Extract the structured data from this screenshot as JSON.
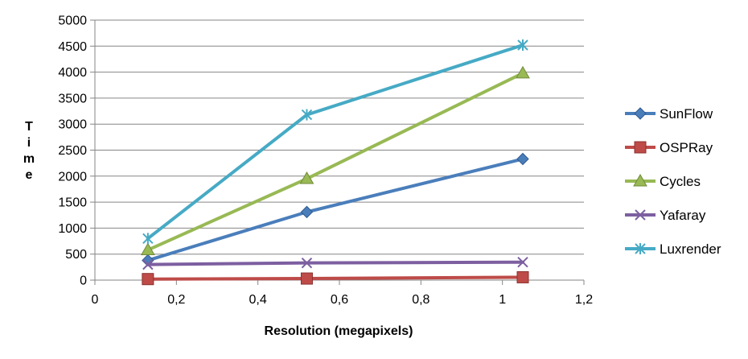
{
  "chart_data": {
    "type": "scatter",
    "title": "",
    "xlabel": "Resolution (megapixels)",
    "ylabel": "Time",
    "xlim": [
      0,
      1.2
    ],
    "ylim": [
      0,
      5000
    ],
    "x_ticks": [
      "0",
      "0,2",
      "0,4",
      "0,6",
      "0,8",
      "1",
      "1,2"
    ],
    "y_ticks": [
      "0",
      "500",
      "1000",
      "1500",
      "2000",
      "2500",
      "3000",
      "3500",
      "4000",
      "4500",
      "5000"
    ],
    "grid": "horizontal",
    "legend_position": "right",
    "series": [
      {
        "name": "SunFlow",
        "color": "#4A7EBB",
        "marker": "diamond",
        "x": [
          0.13,
          0.52,
          1.05
        ],
        "y": [
          380,
          1310,
          2330
        ]
      },
      {
        "name": "OSPRay",
        "color": "#BE4B48",
        "marker": "square",
        "x": [
          0.13,
          0.52,
          1.05
        ],
        "y": [
          20,
          30,
          55
        ]
      },
      {
        "name": "Cycles",
        "color": "#98B954",
        "marker": "triangle",
        "x": [
          0.13,
          0.52,
          1.05
        ],
        "y": [
          580,
          1950,
          3980
        ]
      },
      {
        "name": "Yafaray",
        "color": "#7D5FA0",
        "marker": "x",
        "x": [
          0.13,
          0.52,
          1.05
        ],
        "y": [
          300,
          330,
          345
        ]
      },
      {
        "name": "Luxrender",
        "color": "#46AAC5",
        "marker": "star",
        "x": [
          0.13,
          0.52,
          1.05
        ],
        "y": [
          800,
          3180,
          4520
        ]
      }
    ]
  }
}
